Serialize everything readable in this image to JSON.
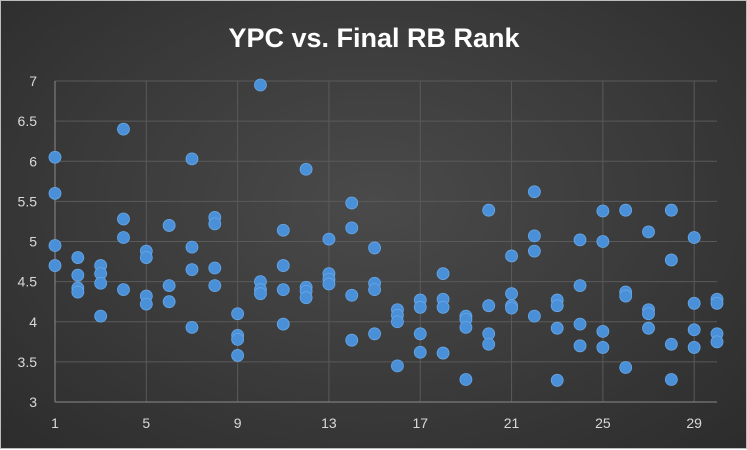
{
  "chart_data": {
    "type": "scatter",
    "title": "YPC vs. Final RB Rank",
    "xlabel": "",
    "ylabel": "",
    "xlim": [
      1,
      30
    ],
    "ylim": [
      3,
      7
    ],
    "x_ticks": [
      1,
      5,
      9,
      13,
      17,
      21,
      25,
      29
    ],
    "y_ticks": [
      3,
      3.5,
      4,
      4.5,
      5,
      5.5,
      6,
      6.5,
      7
    ],
    "grid": true,
    "marker_color": "#4a90d9",
    "series": [
      {
        "points": [
          [
            1,
            6.05
          ],
          [
            1,
            5.6
          ],
          [
            1,
            4.95
          ],
          [
            1,
            4.7
          ],
          [
            2,
            4.8
          ],
          [
            2,
            4.58
          ],
          [
            2,
            4.42
          ],
          [
            2,
            4.37
          ],
          [
            3,
            4.7
          ],
          [
            3,
            4.6
          ],
          [
            3,
            4.48
          ],
          [
            3,
            4.07
          ],
          [
            4,
            6.4
          ],
          [
            4,
            5.28
          ],
          [
            4,
            5.05
          ],
          [
            4,
            4.4
          ],
          [
            5,
            4.88
          ],
          [
            5,
            4.8
          ],
          [
            5,
            4.32
          ],
          [
            5,
            4.22
          ],
          [
            6,
            5.2
          ],
          [
            6,
            4.45
          ],
          [
            6,
            4.25
          ],
          [
            7,
            6.03
          ],
          [
            7,
            4.93
          ],
          [
            7,
            4.65
          ],
          [
            7,
            3.93
          ],
          [
            8,
            5.3
          ],
          [
            8,
            5.22
          ],
          [
            8,
            4.67
          ],
          [
            8,
            4.45
          ],
          [
            9,
            4.1
          ],
          [
            9,
            3.83
          ],
          [
            9,
            3.78
          ],
          [
            9,
            3.58
          ],
          [
            10,
            6.95
          ],
          [
            10,
            4.5
          ],
          [
            10,
            4.4
          ],
          [
            10,
            4.35
          ],
          [
            11,
            5.14
          ],
          [
            11,
            4.7
          ],
          [
            11,
            4.4
          ],
          [
            11,
            3.97
          ],
          [
            12,
            5.9
          ],
          [
            12,
            4.43
          ],
          [
            12,
            4.38
          ],
          [
            12,
            4.3
          ],
          [
            13,
            5.03
          ],
          [
            13,
            4.6
          ],
          [
            13,
            4.53
          ],
          [
            13,
            4.47
          ],
          [
            14,
            5.48
          ],
          [
            14,
            5.17
          ],
          [
            14,
            4.33
          ],
          [
            14,
            3.77
          ],
          [
            15,
            4.92
          ],
          [
            15,
            4.48
          ],
          [
            15,
            4.4
          ],
          [
            15,
            3.85
          ],
          [
            16,
            4.15
          ],
          [
            16,
            4.08
          ],
          [
            16,
            4.0
          ],
          [
            16,
            3.45
          ],
          [
            17,
            4.27
          ],
          [
            17,
            4.18
          ],
          [
            17,
            3.85
          ],
          [
            17,
            3.62
          ],
          [
            18,
            4.6
          ],
          [
            18,
            4.28
          ],
          [
            18,
            4.18
          ],
          [
            18,
            3.61
          ],
          [
            19,
            4.07
          ],
          [
            19,
            4.03
          ],
          [
            19,
            3.93
          ],
          [
            19,
            3.28
          ],
          [
            20,
            5.39
          ],
          [
            20,
            4.2
          ],
          [
            20,
            3.85
          ],
          [
            20,
            3.72
          ],
          [
            21,
            4.82
          ],
          [
            21,
            4.35
          ],
          [
            21,
            4.2
          ],
          [
            21,
            4.17
          ],
          [
            22,
            5.62
          ],
          [
            22,
            5.07
          ],
          [
            22,
            4.88
          ],
          [
            22,
            4.07
          ],
          [
            23,
            4.27
          ],
          [
            23,
            4.2
          ],
          [
            23,
            3.92
          ],
          [
            23,
            3.27
          ],
          [
            24,
            5.02
          ],
          [
            24,
            4.45
          ],
          [
            24,
            3.97
          ],
          [
            24,
            3.7
          ],
          [
            25,
            5.38
          ],
          [
            25,
            5.0
          ],
          [
            25,
            3.88
          ],
          [
            25,
            3.68
          ],
          [
            26,
            5.39
          ],
          [
            26,
            4.37
          ],
          [
            26,
            4.32
          ],
          [
            26,
            3.43
          ],
          [
            27,
            5.12
          ],
          [
            27,
            4.15
          ],
          [
            27,
            4.1
          ],
          [
            27,
            3.92
          ],
          [
            28,
            5.39
          ],
          [
            28,
            4.77
          ],
          [
            28,
            3.72
          ],
          [
            28,
            3.28
          ],
          [
            29,
            5.05
          ],
          [
            29,
            4.23
          ],
          [
            29,
            3.9
          ],
          [
            29,
            3.68
          ],
          [
            30,
            4.28
          ],
          [
            30,
            4.23
          ],
          [
            30,
            3.85
          ],
          [
            30,
            3.75
          ]
        ]
      }
    ]
  }
}
